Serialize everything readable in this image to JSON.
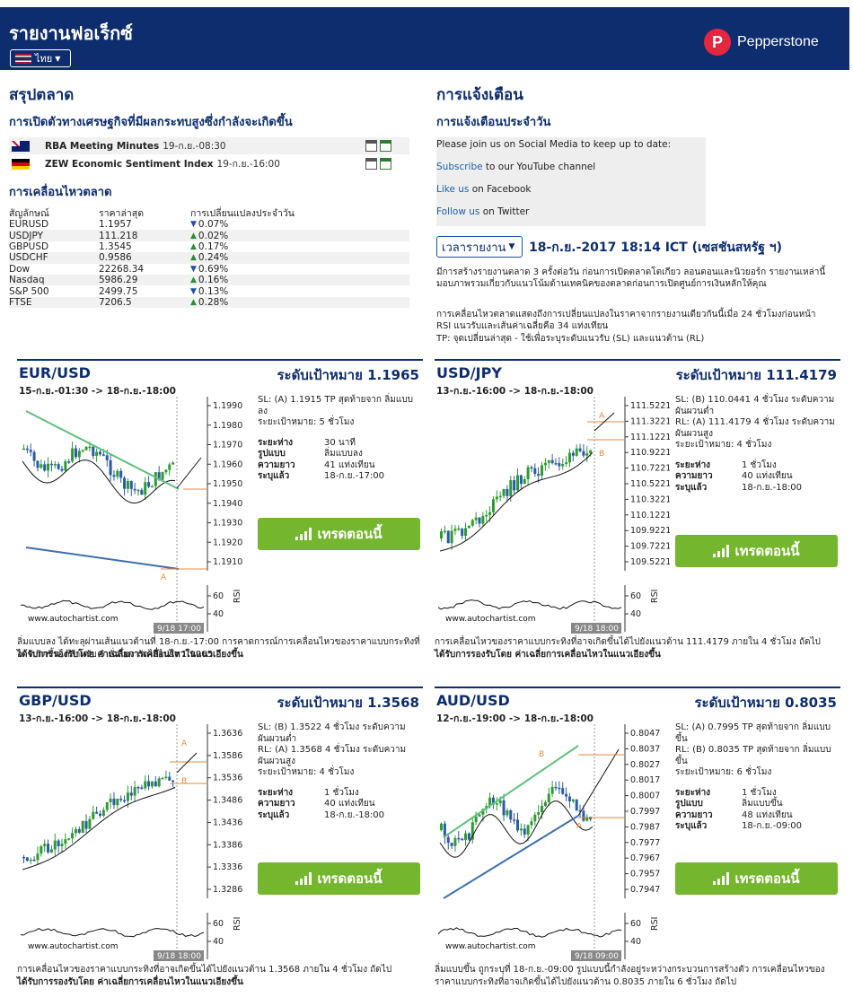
{
  "header": {
    "title": "รายงานฟอเร็กซ์",
    "language_label": "ไทย",
    "brand_name": "Pepperstone",
    "brand_initial": "P"
  },
  "summary": {
    "title": "สรุปตลาด",
    "events_title": "การเปิดตัวทางเศรษฐกิจที่มีผลกระทบสูงซึ่งกำลังจะเกิดขึ้น",
    "events": [
      {
        "flag": "australia-flag-icon",
        "name": "RBA Meeting Minutes",
        "time": "19-ก.ย.-08:30"
      },
      {
        "flag": "germany-flag-icon",
        "name": "ZEW Economic Sentiment Index",
        "time": "19-ก.ย.-16:00"
      }
    ],
    "movement_title": "การเคลื่อนไหวตลาด",
    "table_headers": [
      "สัญลักษณ์",
      "ราคาล่าสุด",
      "การเปลี่ยนแปลงประจำวัน"
    ],
    "rows": [
      {
        "symbol": "EURUSD",
        "price": "1.1957",
        "dir": "down",
        "change": "0.07%"
      },
      {
        "symbol": "USDJPY",
        "price": "111.218",
        "dir": "up",
        "change": "0.02%"
      },
      {
        "symbol": "GBPUSD",
        "price": "1.3545",
        "dir": "up",
        "change": "0.17%"
      },
      {
        "symbol": "USDCHF",
        "price": "0.9586",
        "dir": "up",
        "change": "0.24%"
      },
      {
        "symbol": "Dow",
        "price": "22268.34",
        "dir": "down",
        "change": "0.69%"
      },
      {
        "symbol": "Nasdaq",
        "price": "5986.29",
        "dir": "up",
        "change": "0.16%"
      },
      {
        "symbol": "S&P 500",
        "price": "2499.75",
        "dir": "down",
        "change": "0.13%"
      },
      {
        "symbol": "FTSE",
        "price": "7206.5",
        "dir": "up",
        "change": "0.28%"
      }
    ]
  },
  "alerts": {
    "title": "การแจ้งเตือน",
    "daily_title": "การแจ้งเตือนประจำวัน",
    "social_intro": "Please join us on Social Media to keep up to date:",
    "youtube_link": "Subscribe",
    "youtube_text": " to our YouTube channel",
    "facebook_link": "Like us",
    "facebook_text": " on Facebook",
    "twitter_link": "Follow us",
    "twitter_text": " on Twitter",
    "time_button": "เวลารายงาน",
    "timestamp": "18-ก.ย.-2017 18:14 ICT (เซสชันสหรัฐ ฯ)",
    "para1": "มีการสร้างรายงานตลาด 3 ครั้งต่อวัน ก่อนการเปิดตลาดโตเกียว ลอนดอนและนิวยอร์ก รายงานเหล่านี้มอบภาพรวมเกี่ยวกับแนวโน้มด้านเทคนิคของตลาดก่อนการเปิดศูนย์การเงินหลักให้คุณ",
    "para2": "การเคลื่อนไหวตลาดแสดงถึงการเปลี่ยนแปลงในราคาจากรายงานเดียวกันนี้เมื่อ 24 ชั่วโมงก่อนหน้า",
    "para3": "RSI แนวรับและเส้นค่าเฉลี่ยคือ 34 แท่งเทียน",
    "para4": "TP: จุดเปลี่ยนล่าสุด - ใช้เพื่อระบุระดับแนวรับ (SL) และแนวต้าน (RL)"
  },
  "trade_label": "เทรดตอนนี้",
  "watermark": "www.autochartist.com",
  "rsi_label": "RSI",
  "panels": [
    {
      "symbol": "EUR/USD",
      "target": "ระดับเป้าหมาย 1.1965",
      "range": "15-ก.ย.-01:30 -> 18-ก.ย.-18:00",
      "lines": [
        "SL: (A) 1.1915 TP สุดท้ายจาก ลิ่มแบบลง",
        "ระยะเป้าหมาย: 5 ชั่วโมง"
      ],
      "details": [
        [
          "ระยะห่าง",
          "30 นาที"
        ],
        [
          "รูปแบบ",
          "ลิ่มแบบลง"
        ],
        [
          "ความยาว",
          "41 แท่งเทียน"
        ],
        [
          "ระบุแล้ว",
          "18-ก.ย.-17:00"
        ]
      ],
      "stamp": "9/18 17:00",
      "text": "ลิ่มแบบลง ได้ทะลุผ่านเส้นแนวต้านที่ 18-ก.ย.-17:00 การคาดการณ์การเคลื่อนไหวของราคาแบบกระทิงที่อาจเกิดขึ้นได้สำหรับ 5 ชั่วโมง ถัดไปไปยัง 1.1965",
      "supported": "ได้รับการรองรับโดย ค่าเฉลี่ยการเคลื่อนไหวในแนวเอียงขึ้น",
      "chart_data": {
        "type": "line",
        "y_ticks": [
          "1.1990",
          "1.1980",
          "1.1970",
          "1.1960",
          "1.1950",
          "1.1940",
          "1.1930",
          "1.1920",
          "1.1910"
        ],
        "rsi_ticks": [
          "60",
          "40"
        ],
        "pattern_labels": [
          "A"
        ]
      }
    },
    {
      "symbol": "USD/JPY",
      "target": "ระดับเป้าหมาย 111.4179",
      "range": "13-ก.ย.-16:00 -> 18-ก.ย.-18:00",
      "lines": [
        "SL: (B) 110.0441 4 ชั่วโมง ระดับความผันผวนต่ำ",
        "RL: (A) 111.4179 4 ชั่วโมง ระดับความผันผวนสูง",
        "ระยะเป้าหมาย: 4 ชั่วโมง"
      ],
      "details": [
        [
          "ระยะห่าง",
          "1 ชั่วโมง"
        ],
        [
          "ความยาว",
          "40 แท่งเทียน"
        ],
        [
          "ระบุแล้ว",
          "18-ก.ย.-18:00"
        ]
      ],
      "stamp": "9/18 18:00",
      "text": "การเคลื่อนไหวของราคาแบบกระทิงที่อาจเกิดขึ้นได้ไปยังแนวต้าน 111.4179 ภายใน 4 ชั่วโมง ถัดไป",
      "supported": "ได้รับการรองรับโดย ค่าเฉลี่ยการเคลื่อนไหวในแนวเอียงขึ้น",
      "chart_data": {
        "type": "line",
        "y_ticks": [
          "111.5221",
          "111.3221",
          "111.1221",
          "110.9221",
          "110.7221",
          "110.5221",
          "110.3221",
          "110.1221",
          "109.9221",
          "109.7221",
          "109.5221"
        ],
        "rsi_ticks": [
          "60",
          "40"
        ],
        "pattern_labels": [
          "A",
          "B"
        ]
      }
    },
    {
      "symbol": "GBP/USD",
      "target": "ระดับเป้าหมาย 1.3568",
      "range": "13-ก.ย.-16:00 -> 18-ก.ย.-18:00",
      "lines": [
        "SL: (B) 1.3522 4 ชั่วโมง ระดับความผันผวนต่ำ",
        "RL: (A) 1.3568 4 ชั่วโมง ระดับความผันผวนสูง",
        "ระยะเป้าหมาย: 4 ชั่วโมง"
      ],
      "details": [
        [
          "ระยะห่าง",
          "1 ชั่วโมง"
        ],
        [
          "ความยาว",
          "40 แท่งเทียน"
        ],
        [
          "ระบุแล้ว",
          "18-ก.ย.-18:00"
        ]
      ],
      "stamp": "9/18 18:00",
      "text": "การเคลื่อนไหวของราคาแบบกระทิงที่อาจเกิดขึ้นได้ไปยังแนวต้าน 1.3568 ภายใน 4 ชั่วโมง ถัดไป",
      "supported": "ได้รับการรองรับโดย ค่าเฉลี่ยการเคลื่อนไหวในแนวเอียงขึ้น",
      "chart_data": {
        "type": "line",
        "y_ticks": [
          "1.3636",
          "1.3586",
          "1.3536",
          "1.3486",
          "1.3436",
          "1.3386",
          "1.3336",
          "1.3286"
        ],
        "rsi_ticks": [
          "60",
          "40"
        ],
        "pattern_labels": [
          "A",
          "B"
        ]
      }
    },
    {
      "symbol": "AUD/USD",
      "target": "ระดับเป้าหมาย 0.8035",
      "range": "12-ก.ย.-19:00 -> 18-ก.ย.-18:00",
      "lines": [
        "SL: (A) 0.7995 TP สุดท้ายจาก ลิ่มแบบขึ้น",
        "RL: (B) 0.8035 TP สุดท้ายจาก ลิ่มแบบขึ้น",
        "ระยะเป้าหมาย: 6 ชั่วโมง"
      ],
      "details": [
        [
          "ระยะห่าง",
          "1 ชั่วโมง"
        ],
        [
          "รูปแบบ",
          "ลิ่มแบบขึ้น"
        ],
        [
          "ความยาว",
          "48 แท่งเทียน"
        ],
        [
          "ระบุแล้ว",
          "18-ก.ย.-09:00"
        ]
      ],
      "stamp": "9/18 09:00",
      "text": "ลิ่มแบบขึ้น ถูกระบุที่ 18-ก.ย.-09:00 รูปแบบนี้กำลังอยู่ระหว่างกระบวนการสร้างตัว การเคลื่อนไหวของราคาแบบกระทิงที่อาจเกิดขึ้นได้ไปยังแนวต้าน 0.8035 ภายใน 6 ชั่วโมง ถัดไป",
      "supported": "",
      "chart_data": {
        "type": "line",
        "y_ticks": [
          "0.8047",
          "0.8037",
          "0.8027",
          "0.8017",
          "0.8007",
          "0.7997",
          "0.7987",
          "0.7977",
          "0.7967",
          "0.7957",
          "0.7947"
        ],
        "rsi_ticks": [
          "60",
          "40"
        ],
        "pattern_labels": [
          "A",
          "B"
        ]
      }
    }
  ]
}
